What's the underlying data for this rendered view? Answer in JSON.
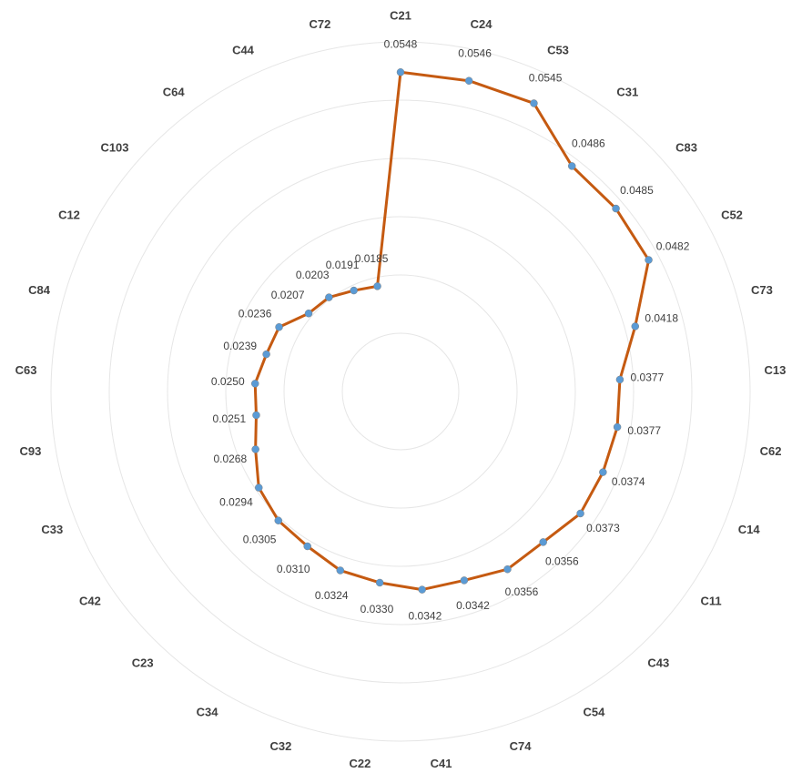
{
  "chart_data": {
    "type": "radar",
    "categories": [
      "C21",
      "C24",
      "C53",
      "C31",
      "C83",
      "C52",
      "C73",
      "C13",
      "C62",
      "C14",
      "C11",
      "C43",
      "C54",
      "C74",
      "C41",
      "C22",
      "C32",
      "C34",
      "C23",
      "C42",
      "C33",
      "C93",
      "C63",
      "C84",
      "C12",
      "C103",
      "C64",
      "C44",
      "C72"
    ],
    "series": [
      {
        "color": "#c55a11",
        "marker_color": "#5b9bd5",
        "values": [
          0.0548,
          0.0546,
          0.0545,
          0.0486,
          0.0485,
          0.0482,
          0.0418,
          0.0377,
          0.0377,
          0.0374,
          0.0373,
          0.0356,
          0.0356,
          0.0342,
          0.0342,
          0.033,
          0.0324,
          0.031,
          0.0305,
          0.0294,
          0.0268,
          0.0251,
          0.025,
          0.0239,
          0.0236,
          0.0207,
          0.0203,
          0.0191,
          0.0185
        ],
        "value_labels": [
          "0.0548",
          "0.0546",
          "0.0545",
          "0.0486",
          "0.0485",
          "0.0482",
          "0.0418",
          "0.0377",
          "0.0377",
          "0.0374",
          "0.0373",
          "0.0356",
          "0.0356",
          "0.0342",
          "0.0342",
          "0.0330",
          "0.0324",
          "0.0310",
          "0.0305",
          "0.0294",
          "0.0268",
          "0.0251",
          "0.0250",
          "0.0239",
          "0.0236",
          "0.0207",
          "0.0203",
          "0.0191",
          "0.0185"
        ]
      }
    ],
    "ylim": [
      0,
      0.06
    ],
    "yticks": [
      0,
      0.01,
      0.02,
      0.03,
      0.04,
      0.05,
      0.06
    ],
    "grid": true
  }
}
